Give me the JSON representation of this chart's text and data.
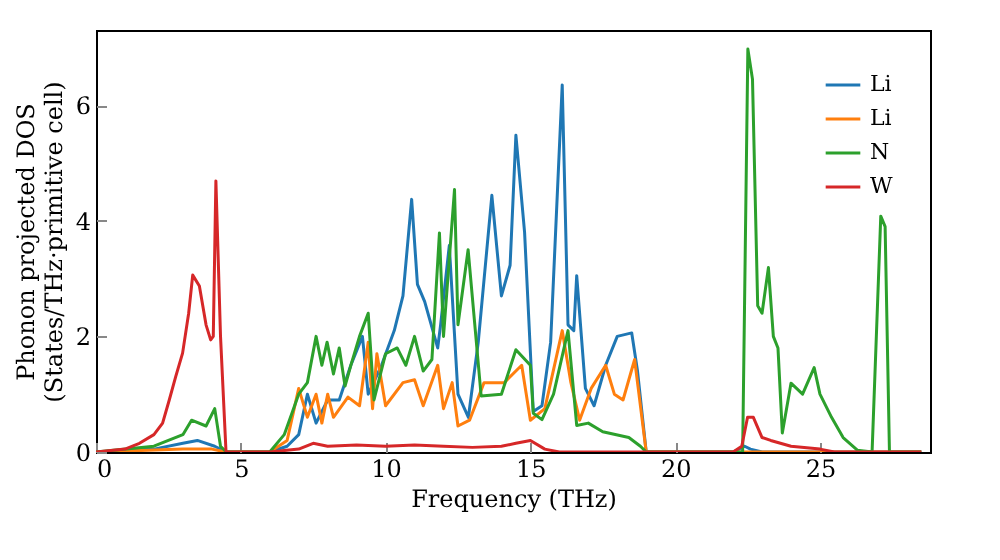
{
  "chart_data": {
    "type": "line",
    "xlabel": "Frequency (THz)",
    "ylabel": "Phonon projected DOS\n(States/THz·primitive cell)",
    "xlim": [
      0,
      28.8
    ],
    "ylim": [
      0,
      7.3
    ],
    "xticks": [
      0,
      5,
      10,
      15,
      20,
      25
    ],
    "yticks": [
      0,
      2,
      4,
      6
    ],
    "legend": "top right",
    "grid": false,
    "line_style": "solid",
    "marker": "none",
    "series": [
      {
        "name": "Li",
        "color": "#1f77b4",
        "x": [
          0,
          2,
          3,
          3.5,
          4.1,
          4.5,
          6,
          6.6,
          7,
          7.3,
          7.6,
          8,
          8.4,
          8.8,
          9.2,
          9.4,
          9.86,
          10.3,
          10.6,
          10.9,
          11.1,
          11.35,
          11.8,
          11.9,
          12.2,
          12.5,
          12.86,
          13.2,
          13.67,
          14,
          14.3,
          14.5,
          14.8,
          15.1,
          15.4,
          15.7,
          16.1,
          16.3,
          16.5,
          16.6,
          16.9,
          17.2,
          17.6,
          18,
          18.5,
          18.7,
          19,
          22,
          22.4,
          22.6,
          23,
          28.5
        ],
        "values": [
          0,
          0.05,
          0.15,
          0.2,
          0.1,
          0,
          0,
          0.1,
          0.3,
          1.0,
          0.5,
          0.9,
          0.9,
          1.5,
          2.0,
          1.0,
          1.5,
          2.1,
          2.7,
          4.37,
          2.9,
          2.6,
          1.8,
          2.2,
          3.57,
          1.0,
          0.6,
          1.9,
          4.44,
          2.7,
          3.23,
          5.48,
          3.8,
          0.7,
          0.8,
          1.9,
          6.35,
          2.2,
          2.1,
          3.05,
          1.1,
          0.8,
          1.5,
          2.0,
          2.06,
          1.4,
          0,
          0,
          0.1,
          0.05,
          0,
          0
        ]
      },
      {
        "name": "Li",
        "color": "#ff7f0e",
        "x": [
          0,
          3,
          4,
          4.5,
          6,
          6.6,
          7,
          7.3,
          7.6,
          7.8,
          8,
          8.2,
          8.7,
          9.1,
          9.4,
          9.55,
          9.7,
          10,
          10.6,
          11,
          11.3,
          11.8,
          12,
          12.3,
          12.5,
          12.9,
          13.4,
          14.1,
          14.7,
          15,
          15.5,
          16.1,
          16.4,
          16.7,
          17.1,
          17.6,
          17.9,
          18.2,
          18.6,
          19,
          28.5
        ],
        "values": [
          0,
          0.05,
          0.05,
          0,
          0,
          0.2,
          1.1,
          0.6,
          1.0,
          0.5,
          1.0,
          0.6,
          0.95,
          0.8,
          1.9,
          0.75,
          1.7,
          0.8,
          1.2,
          1.25,
          0.8,
          1.5,
          0.75,
          1.2,
          0.45,
          0.55,
          1.2,
          1.2,
          1.5,
          0.55,
          0.75,
          2.1,
          1.2,
          0.55,
          1.1,
          1.5,
          1.0,
          0.9,
          1.6,
          0,
          0
        ]
      },
      {
        "name": "N",
        "color": "#2ca02c",
        "x": [
          0,
          2,
          3,
          3.3,
          3.8,
          4.1,
          4.3,
          4.5,
          6,
          6.5,
          7,
          7.3,
          7.6,
          7.8,
          7.98,
          8.2,
          8.4,
          8.6,
          8.8,
          9.1,
          9.4,
          9.6,
          10,
          10.4,
          10.7,
          11,
          11.3,
          11.6,
          11.86,
          12,
          12.38,
          12.5,
          12.85,
          13.3,
          14,
          14.5,
          15,
          15.1,
          15.4,
          15.8,
          16.3,
          16.6,
          17,
          17.5,
          18.4,
          18.8,
          19,
          22.33,
          22.51,
          22.67,
          22.85,
          23,
          23.22,
          23.39,
          23.55,
          23.7,
          24,
          24.4,
          24.8,
          25,
          25.4,
          25.8,
          26.3,
          26.8,
          27.1,
          27.25,
          27.4,
          28.5
        ],
        "values": [
          0,
          0.1,
          0.3,
          0.55,
          0.45,
          0.75,
          0.1,
          0,
          0,
          0.3,
          1.0,
          1.2,
          2.0,
          1.5,
          1.9,
          1.35,
          1.8,
          1.14,
          1.5,
          2.0,
          2.4,
          0.9,
          1.7,
          1.8,
          1.5,
          2.0,
          1.4,
          1.6,
          3.79,
          2.0,
          4.54,
          2.2,
          3.5,
          0.97,
          1.0,
          1.77,
          1.5,
          0.67,
          0.56,
          1.0,
          2.1,
          0.46,
          0.5,
          0.35,
          0.25,
          0.1,
          0,
          0,
          6.97,
          6.45,
          2.53,
          2.4,
          3.19,
          2.0,
          1.8,
          0.33,
          1.19,
          1.0,
          1.46,
          1.0,
          0.6,
          0.25,
          0.03,
          0,
          4.08,
          3.9,
          0,
          0
        ]
      },
      {
        "name": "W",
        "color": "#d62728",
        "x": [
          0,
          1,
          1.5,
          2,
          2.3,
          2.53,
          2.75,
          2.99,
          3.2,
          3.34,
          3.57,
          3.8,
          3.96,
          4.05,
          4.14,
          4.3,
          4.49,
          6,
          7,
          7.5,
          8,
          9,
          10,
          11,
          12,
          13,
          14,
          14.5,
          15,
          15.5,
          16,
          22,
          22.3,
          22.5,
          22.7,
          23,
          23.3,
          24,
          25,
          25.5,
          28.5
        ],
        "values": [
          0,
          0.05,
          0.15,
          0.3,
          0.5,
          0.9,
          1.3,
          1.71,
          2.4,
          3.06,
          2.87,
          2.2,
          1.94,
          2.0,
          4.69,
          2.0,
          0,
          0,
          0.05,
          0.15,
          0.1,
          0.12,
          0.1,
          0.12,
          0.1,
          0.08,
          0.1,
          0.15,
          0.2,
          0.05,
          0,
          0,
          0.1,
          0.6,
          0.6,
          0.25,
          0.2,
          0.1,
          0.05,
          0,
          0
        ]
      }
    ]
  }
}
